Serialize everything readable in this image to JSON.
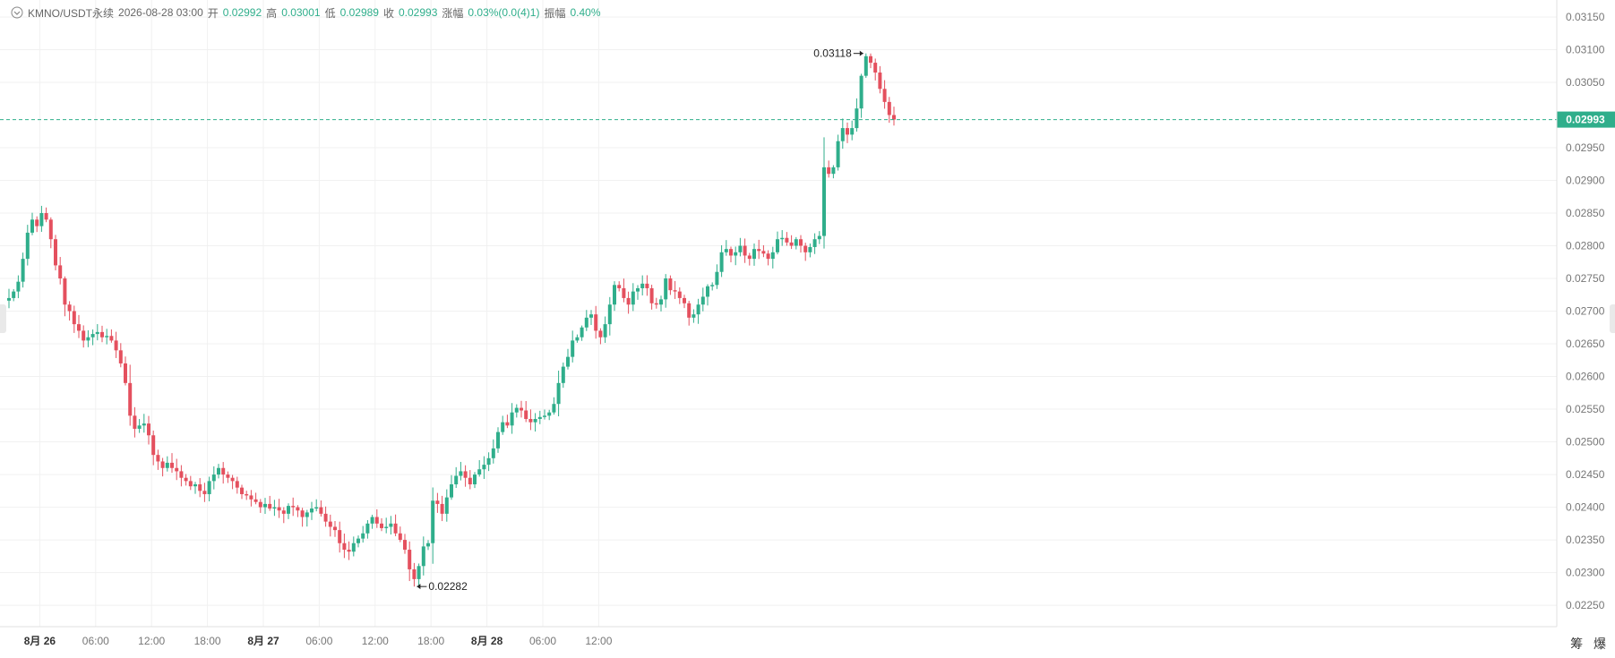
{
  "header": {
    "symbol": "KMNO/USDT永续",
    "datetime": "2026-08-28 03:00",
    "open_label": "开",
    "open": "0.02992",
    "high_label": "高",
    "high": "0.03001",
    "low_label": "低",
    "low": "0.02989",
    "close_label": "收",
    "close": "0.02993",
    "change_label": "涨幅",
    "change": "0.03%(0.0(4)1)",
    "amplitude_label": "振幅",
    "amplitude": "0.40%"
  },
  "bottom_buttons": [
    "筹",
    "爆"
  ],
  "colors": {
    "up": "#2fae8b",
    "down": "#e4505e",
    "grid": "#f1f1f1",
    "axis_text": "#777777"
  },
  "chart_data": {
    "type": "candlestick",
    "interval_hours": 0.5,
    "x_tick_labels": [
      "8月 26",
      "06:00",
      "12:00",
      "18:00",
      "8月 27",
      "06:00",
      "12:00",
      "18:00",
      "8月 28",
      "06:00",
      "12:00"
    ],
    "y_tick_labels": [
      "0.03150",
      "0.03100",
      "0.03050",
      "0.02950",
      "0.02900",
      "0.02850",
      "0.02800",
      "0.02750",
      "0.02700",
      "0.02650",
      "0.02600",
      "0.02550",
      "0.02500",
      "0.02450",
      "0.02400",
      "0.02350",
      "0.02300",
      "0.02250"
    ],
    "ylim": [
      0.0222,
      0.03165
    ],
    "current_price": "0.02993",
    "annotations": {
      "max": "0.03118",
      "min": "0.02282"
    },
    "closes": [
      0.0272,
      0.0273,
      0.02745,
      0.0278,
      0.0282,
      0.0284,
      0.0283,
      0.0285,
      0.0284,
      0.0281,
      0.0277,
      0.0275,
      0.0271,
      0.027,
      0.0268,
      0.0267,
      0.02655,
      0.0266,
      0.02665,
      0.02668,
      0.0266,
      0.02662,
      0.02655,
      0.0264,
      0.0262,
      0.0259,
      0.0254,
      0.0252,
      0.02525,
      0.02528,
      0.0251,
      0.0248,
      0.0247,
      0.0246,
      0.02468,
      0.0246,
      0.02455,
      0.02445,
      0.0244,
      0.02432,
      0.02435,
      0.02425,
      0.0242,
      0.0244,
      0.0245,
      0.0246,
      0.0245,
      0.02445,
      0.0244,
      0.0243,
      0.0242,
      0.02418,
      0.02412,
      0.02408,
      0.024,
      0.02405,
      0.02398,
      0.024,
      0.02395,
      0.0239,
      0.02402,
      0.024,
      0.02395,
      0.02385,
      0.02392,
      0.02398,
      0.024,
      0.0239,
      0.02378,
      0.0237,
      0.02365,
      0.02345,
      0.02335,
      0.02332,
      0.02345,
      0.02352,
      0.0236,
      0.02375,
      0.02385,
      0.02375,
      0.02368,
      0.0237,
      0.02375,
      0.0236,
      0.0235,
      0.02335,
      0.02305,
      0.0229,
      0.0231,
      0.0234,
      0.02345,
      0.0241,
      0.02405,
      0.0239,
      0.02415,
      0.02435,
      0.02448,
      0.02455,
      0.02445,
      0.02435,
      0.0245,
      0.02458,
      0.02465,
      0.02475,
      0.0249,
      0.02515,
      0.0253,
      0.02525,
      0.02545,
      0.02552,
      0.02548,
      0.02535,
      0.0253,
      0.02535,
      0.02538,
      0.0254,
      0.02545,
      0.02558,
      0.0259,
      0.02615,
      0.0263,
      0.02655,
      0.0266,
      0.02675,
      0.0269,
      0.02695,
      0.0267,
      0.0266,
      0.0268,
      0.0271,
      0.0274,
      0.02735,
      0.0272,
      0.0271,
      0.0273,
      0.02735,
      0.02742,
      0.02735,
      0.02712,
      0.0271,
      0.02718,
      0.0275,
      0.02732,
      0.0273,
      0.0272,
      0.02712,
      0.0269,
      0.02695,
      0.0271,
      0.02722,
      0.02738,
      0.0274,
      0.0276,
      0.0279,
      0.02795,
      0.02785,
      0.0279,
      0.028,
      0.02785,
      0.0278,
      0.02795,
      0.02792,
      0.02788,
      0.0278,
      0.0279,
      0.0281,
      0.02812,
      0.02805,
      0.028,
      0.0281,
      0.028,
      0.0279,
      0.02798,
      0.0281,
      0.02815,
      0.0292,
      0.0291,
      0.0292,
      0.0296,
      0.0298,
      0.0297,
      0.0298,
      0.0301,
      0.0306,
      0.0309,
      0.0308,
      0.03065,
      0.0304,
      0.0302,
      0.03,
      0.02993
    ]
  }
}
